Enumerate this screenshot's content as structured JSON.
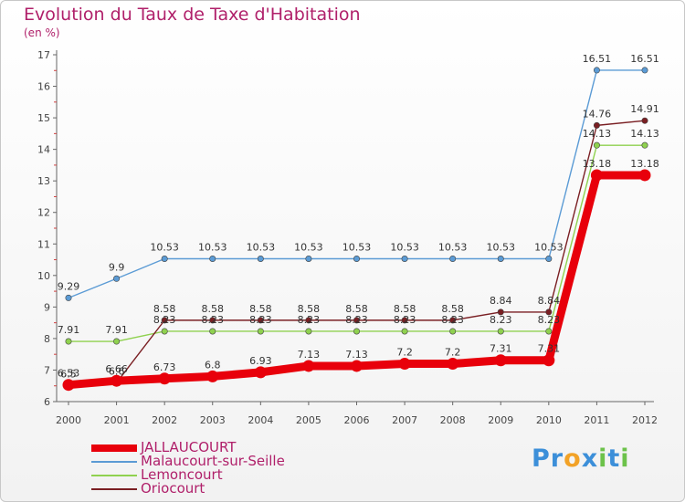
{
  "title": "Evolution du Taux de Taxe d'Habitation",
  "unit": "(en %)",
  "logo": {
    "text": "Proxiti",
    "colors": [
      "#3c8fd9",
      "#f2a227",
      "#6cc24a"
    ]
  },
  "chart_data": {
    "type": "line",
    "title": "Evolution du Taux de Taxe d'Habitation",
    "ylabel": "(en %)",
    "xlabel": "",
    "x": [
      "2000",
      "2001",
      "2002",
      "2003",
      "2004",
      "2005",
      "2006",
      "2007",
      "2008",
      "2009",
      "2010",
      "2011",
      "2012"
    ],
    "ylim": [
      6,
      17
    ],
    "yticks": [
      6,
      7,
      8,
      9,
      10,
      11,
      12,
      13,
      14,
      15,
      16,
      17
    ],
    "grid": false,
    "legend": "bottom-left",
    "series": [
      {
        "name": "JALLAUCOURT",
        "color": "#e8000b",
        "emphasis": true,
        "values": [
          6.53,
          6.66,
          6.73,
          6.8,
          6.93,
          7.13,
          7.13,
          7.2,
          7.2,
          7.31,
          7.31,
          13.18,
          13.18
        ],
        "labels": [
          "6.53",
          "6.66",
          "6.73",
          "6.8",
          "6.93",
          "7.13",
          "7.13",
          "7.2",
          "7.2",
          "7.31",
          "7.31",
          "13.18",
          "13.18"
        ]
      },
      {
        "name": "Malaucourt-sur-Seille",
        "color": "#5b9bd5",
        "values": [
          9.29,
          9.9,
          10.53,
          10.53,
          10.53,
          10.53,
          10.53,
          10.53,
          10.53,
          10.53,
          10.53,
          16.51,
          16.51
        ],
        "labels": [
          "9.29",
          "9.9",
          "10.53",
          "10.53",
          "10.53",
          "10.53",
          "10.53",
          "10.53",
          "10.53",
          "10.53",
          "10.53",
          "16.51",
          "16.51"
        ]
      },
      {
        "name": "Lemoncourt",
        "color": "#8fd14f",
        "values": [
          7.91,
          7.91,
          8.23,
          8.23,
          8.23,
          8.23,
          8.23,
          8.23,
          8.23,
          8.23,
          8.23,
          14.13,
          14.13
        ],
        "labels": [
          "7.91",
          "7.91",
          "8.23",
          "8.23",
          "8.23",
          "8.23",
          "8.23",
          "8.23",
          "8.23",
          "8.23",
          "8.23",
          "14.13",
          "14.13"
        ]
      },
      {
        "name": "Oriocourt",
        "color": "#7a1f23",
        "values": [
          6.5,
          6.6,
          8.58,
          8.58,
          8.58,
          8.58,
          8.58,
          8.58,
          8.58,
          8.84,
          8.84,
          14.76,
          14.91
        ],
        "labels": [
          "6.5",
          "6.6",
          "8.58",
          "8.58",
          "8.58",
          "8.58",
          "8.58",
          "8.58",
          "8.58",
          "8.84",
          "8.84",
          "14.76",
          "14.91"
        ]
      }
    ]
  }
}
